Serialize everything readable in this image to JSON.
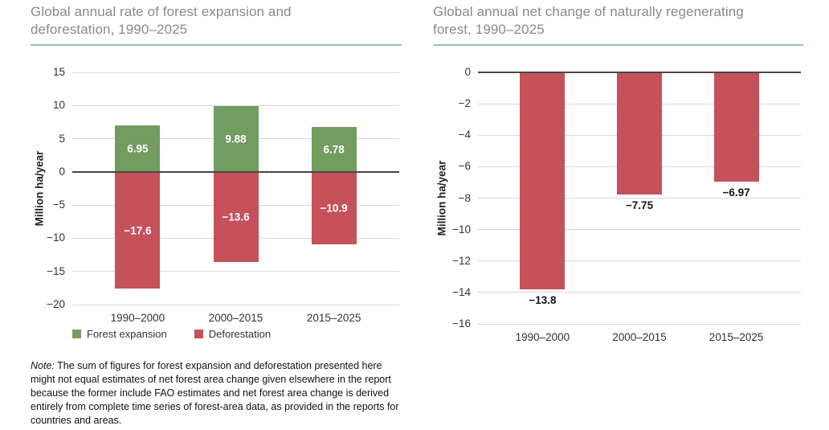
{
  "colors": {
    "green": "#739c60",
    "red": "#c5515a",
    "grid": "#d8d8d8",
    "zero_line": "#474747",
    "title_gray": "#8a8a8a",
    "rule_teal": "#a2beba",
    "tick_text": "#333333",
    "value_label_inside": "#ffffff",
    "value_label_below": "#161616"
  },
  "chart_data": [
    {
      "type": "bar",
      "title": "Global annual rate of forest expansion and deforestation, 1990–2025",
      "ylabel": "Million ha/year",
      "ylim": [
        -20,
        15
      ],
      "ytick_step": 5,
      "grid": true,
      "legend_position": "bottom",
      "value_labels": "inside",
      "categories": [
        "1990–2000",
        "2000–2015",
        "2015–2025"
      ],
      "series": [
        {
          "name": "Forest expansion",
          "color_key": "green",
          "values": [
            6.95,
            9.88,
            6.78
          ],
          "labels": [
            "6.95",
            "9.88",
            "6.78"
          ]
        },
        {
          "name": "Deforestation",
          "color_key": "red",
          "values": [
            -17.6,
            -13.6,
            -10.9
          ],
          "labels": [
            "−17.6",
            "−13.6",
            "−10.9"
          ]
        }
      ]
    },
    {
      "type": "bar",
      "title": "Global annual net change of naturally regenerating forest, 1990–2025",
      "ylabel": "Million ha/year",
      "ylim": [
        -16,
        0
      ],
      "ytick_step": 2,
      "grid": true,
      "legend_position": "none",
      "value_labels": "below",
      "categories": [
        "1990–2000",
        "2000–2015",
        "2015–2025"
      ],
      "series": [
        {
          "color_key": "red",
          "values": [
            -13.8,
            -7.75,
            -6.97
          ],
          "labels": [
            "−13.8",
            "−7.75",
            "−6.97"
          ]
        }
      ]
    }
  ],
  "note": {
    "prefix": "Note:",
    "body": " The sum of figures for forest expansion and deforestation presented here might not equal estimates of net forest area change given elsewhere in the report because the former include FAO estimates and net forest area change is derived entirely from complete time series of forest-area data, as provided in the reports for countries and areas."
  }
}
